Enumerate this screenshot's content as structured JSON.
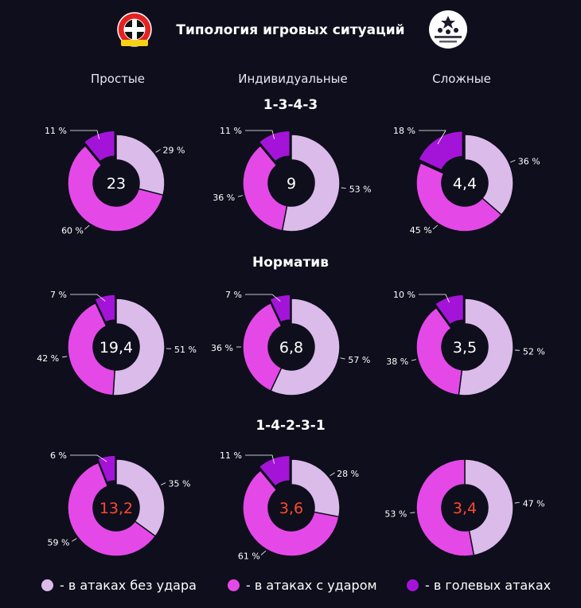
{
  "header": {
    "title": "Типология игровых ситуаций",
    "logo_left_text": "BAYER 04 Leverkusen",
    "logo_right_text": "CHAMPIONS LEAGUE"
  },
  "columns": [
    "Простые",
    "Индивидуальные",
    "Сложные"
  ],
  "sections": [
    "1-3-4-3",
    "Норматив",
    "1-4-2-3-1"
  ],
  "colors": {
    "no_shot": "#dbbbea",
    "with_shot": "#e449e8",
    "goal": "#a414d8",
    "center_white": "#ffffff",
    "center_red": "#ff4a2d",
    "background": "#0f0e1c"
  },
  "legend": [
    {
      "label": "- в атаках без удара",
      "color": "#dbbbea"
    },
    {
      "label": "- в атаках с ударом",
      "color": "#e449e8"
    },
    {
      "label": "- в голевых атаках",
      "color": "#a414d8"
    }
  ],
  "chart_data": {
    "type": "pie",
    "title": "Типология игровых ситуаций",
    "series_names": [
      "в атаках без удара",
      "в атаках с ударом",
      "в голевых атаках"
    ],
    "rows": [
      "1-3-4-3",
      "Норматив",
      "1-4-2-3-1"
    ],
    "columns": [
      "Простые",
      "Индивидуальные",
      "Сложные"
    ],
    "donuts": [
      {
        "row": "1-3-4-3",
        "column": "Простые",
        "center": "23",
        "center_color": "white",
        "slices": [
          {
            "series": "в атаках без удара",
            "value": 29,
            "label": "29 %"
          },
          {
            "series": "в атаках с ударом",
            "value": 60,
            "label": "60 %"
          },
          {
            "series": "в голевых атаках",
            "value": 11,
            "label": "11 %"
          }
        ]
      },
      {
        "row": "1-3-4-3",
        "column": "Индивидуальные",
        "center": "9",
        "center_color": "white",
        "slices": [
          {
            "series": "в атаках без удара",
            "value": 53,
            "label": "53 %"
          },
          {
            "series": "в атаках с ударом",
            "value": 36,
            "label": "36 %"
          },
          {
            "series": "в голевых атаках",
            "value": 11,
            "label": "11 %"
          }
        ]
      },
      {
        "row": "1-3-4-3",
        "column": "Сложные",
        "center": "4,4",
        "center_color": "white",
        "slices": [
          {
            "series": "в атаках без удара",
            "value": 36,
            "label": "36 %"
          },
          {
            "series": "в атаках с ударом",
            "value": 45,
            "label": "45 %"
          },
          {
            "series": "в голевых атаках",
            "value": 18,
            "label": "18 %"
          }
        ]
      },
      {
        "row": "Норматив",
        "column": "Простые",
        "center": "19,4",
        "center_color": "white",
        "slices": [
          {
            "series": "в атаках без удара",
            "value": 51,
            "label": "51 %"
          },
          {
            "series": "в атаках с ударом",
            "value": 42,
            "label": "42 %"
          },
          {
            "series": "в голевых атаках",
            "value": 7,
            "label": "7 %"
          }
        ]
      },
      {
        "row": "Норматив",
        "column": "Индивидуальные",
        "center": "6,8",
        "center_color": "white",
        "slices": [
          {
            "series": "в атаках без удара",
            "value": 57,
            "label": "57 %"
          },
          {
            "series": "в атаках с ударом",
            "value": 36,
            "label": "36 %"
          },
          {
            "series": "в голевых атаках",
            "value": 7,
            "label": "7 %"
          }
        ]
      },
      {
        "row": "Норматив",
        "column": "Сложные",
        "center": "3,5",
        "center_color": "white",
        "slices": [
          {
            "series": "в атаках без удара",
            "value": 52,
            "label": "52 %"
          },
          {
            "series": "в атаках с ударом",
            "value": 38,
            "label": "38 %"
          },
          {
            "series": "в голевых атаках",
            "value": 10,
            "label": "10 %"
          }
        ]
      },
      {
        "row": "1-4-2-3-1",
        "column": "Простые",
        "center": "13,2",
        "center_color": "red",
        "slices": [
          {
            "series": "в атаках без удара",
            "value": 35,
            "label": "35 %"
          },
          {
            "series": "в атаках с ударом",
            "value": 59,
            "label": "59 %"
          },
          {
            "series": "в голевых атаках",
            "value": 6,
            "label": "6 %"
          }
        ]
      },
      {
        "row": "1-4-2-3-1",
        "column": "Индивидуальные",
        "center": "3,6",
        "center_color": "red",
        "slices": [
          {
            "series": "в атаках без удара",
            "value": 28,
            "label": "28 %"
          },
          {
            "series": "в атаках с ударом",
            "value": 61,
            "label": "61 %"
          },
          {
            "series": "в голевых атаках",
            "value": 11,
            "label": "11 %"
          }
        ]
      },
      {
        "row": "1-4-2-3-1",
        "column": "Сложные",
        "center": "3,4",
        "center_color": "red",
        "slices": [
          {
            "series": "в атаках без удара",
            "value": 47,
            "label": "47 %"
          },
          {
            "series": "в атаках с ударом",
            "value": 53,
            "label": "53 %"
          },
          {
            "series": "в голевых атаках",
            "value": 0,
            "label": ""
          }
        ]
      }
    ]
  }
}
